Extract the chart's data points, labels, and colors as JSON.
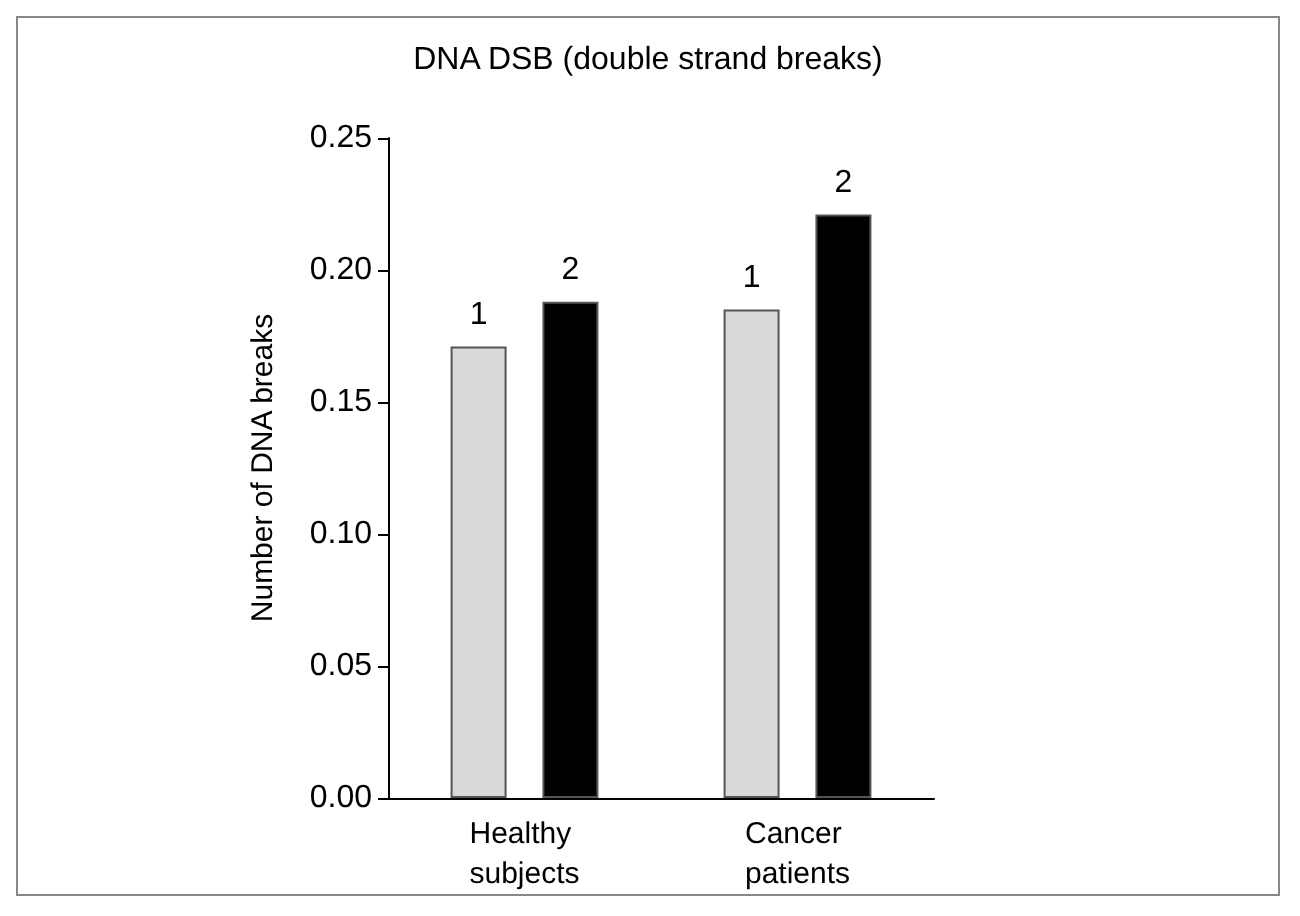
{
  "chart_data": {
    "type": "bar",
    "title": "DNA DSB (double strand breaks)",
    "ylabel": "Number of DNA breaks",
    "categories": [
      "Healthy subjects",
      "Cancer patients"
    ],
    "series": [
      {
        "name": "1",
        "color": "#d9d9d9",
        "values": [
          0.171,
          0.185
        ]
      },
      {
        "name": "2",
        "color": "#000000",
        "values": [
          0.188,
          0.221
        ]
      }
    ],
    "ylim": [
      0,
      0.25
    ],
    "yticks": [
      {
        "value": 0,
        "label": "0.00"
      },
      0.05,
      {
        "value": 0.1,
        "label": "0.10"
      },
      0.15,
      {
        "value": 0.2,
        "label": "0.20"
      },
      0.25
    ],
    "grid": false,
    "legend": false
  }
}
